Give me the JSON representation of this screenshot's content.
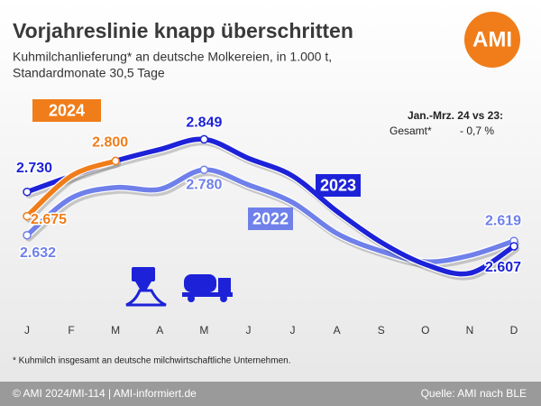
{
  "chart_data": {
    "type": "line",
    "title": "Vorjahreslinie knapp überschritten",
    "subtitle": [
      "Kuhmilchanlieferung* an deutsche Molkereien, in 1.000 t,",
      "Standardmonate 30,5 Tage"
    ],
    "logo": "AMI",
    "annotation": [
      "Jan.-Mrz. 24 vs 23:",
      "Gesamt*",
      "- 0,7 %"
    ],
    "footnote": "* Kuhmilch insgesamt an deutsche milchwirtschaftliche Unternehmen.",
    "footer_left": "© AMI 2024/MI-114 | AMI-informiert.de",
    "footer_right": "Quelle: AMI nach BLE",
    "categories": [
      "J",
      "F",
      "M",
      "A",
      "M",
      "J",
      "J",
      "A",
      "S",
      "O",
      "N",
      "D"
    ],
    "ylim": [
      2460,
      2960
    ],
    "series": [
      {
        "name": "2022",
        "color": "#6f80ea",
        "values": [
          2632,
          2716,
          2740,
          2736,
          2780,
          2746,
          2706,
          2636,
          2596,
          2572,
          2586,
          2619
        ],
        "value_labels": [
          "2.632",
          null,
          null,
          null,
          "2.780",
          null,
          null,
          null,
          null,
          null,
          null,
          "2.619"
        ]
      },
      {
        "name": "2023",
        "color": "#1d22d8",
        "values": [
          2730,
          2766,
          2800,
          2826,
          2849,
          2806,
          2766,
          2686,
          2616,
          2566,
          2546,
          2607
        ],
        "value_labels": [
          "2.730",
          null,
          null,
          null,
          "2.849",
          null,
          null,
          null,
          null,
          null,
          null,
          "2.607"
        ]
      },
      {
        "name": "2024",
        "color": "#f07d1a",
        "values": [
          2675,
          2766,
          2800,
          null,
          null,
          null,
          null,
          null,
          null,
          null,
          null,
          null
        ],
        "value_labels": [
          "2.675",
          null,
          "2.800",
          null,
          null,
          null,
          null,
          null,
          null,
          null,
          null,
          null
        ]
      }
    ]
  }
}
